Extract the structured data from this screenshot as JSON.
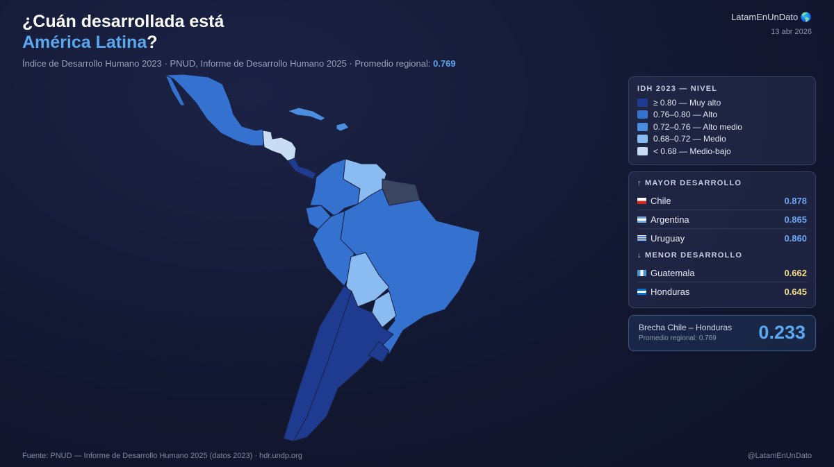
{
  "header": {
    "title_line1": "¿Cuán desarrollada está",
    "title_highlight": "América Latina",
    "title_end": "?",
    "subtitle": "Índice de Desarrollo Humano 2023 · PNUD, Informe de Desarrollo Humano 2025 · Promedio regional:",
    "subtitle_value": "0.769",
    "brand": "LatamEnUnDato 🌎",
    "date": "13 abr 2026"
  },
  "legend": {
    "title": "IDH 2023 — NIVEL",
    "items": [
      {
        "label": "≥ 0.80 — Muy alto",
        "color": "#1f3b8f"
      },
      {
        "label": "0.76–0.80 — Alto",
        "color": "#3571cf"
      },
      {
        "label": "0.72–0.76 — Alto medio",
        "color": "#4b8ee0"
      },
      {
        "label": "0.68–0.72 — Medio",
        "color": "#8bbcf1"
      },
      {
        "label": "< 0.68 — Medio-bajo",
        "color": "#c8ddf4"
      }
    ]
  },
  "ranking": {
    "top_title": "↑ MAYOR DESARROLLO",
    "top": [
      {
        "country": "Chile",
        "value": "0.878"
      },
      {
        "country": "Argentina",
        "value": "0.865"
      },
      {
        "country": "Uruguay",
        "value": "0.860"
      }
    ],
    "bottom_title": "↓ MENOR DESARROLLO",
    "bottom": [
      {
        "country": "Guatemala",
        "value": "0.662"
      },
      {
        "country": "Honduras",
        "value": "0.645"
      }
    ]
  },
  "gap": {
    "label": "Brecha Chile – Honduras",
    "note": "Promedio regional: 0.769",
    "value": "0.233"
  },
  "footer": {
    "source": "Fuente: PNUD — Informe de Desarrollo Humano 2025 (datos 2023) · hdr.undp.org",
    "handle": "@LatamEnUnDato"
  }
}
